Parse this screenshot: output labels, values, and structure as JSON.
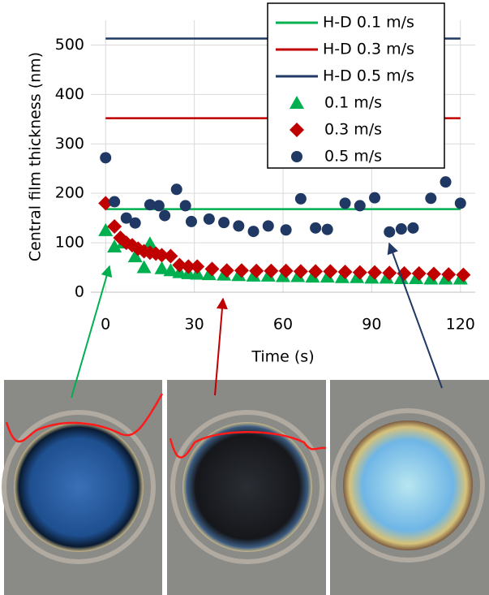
{
  "chart_data": {
    "type": "scatter",
    "y_label": "Central film thickness (nm)",
    "x_label": "Time (s)",
    "xlim": [
      -5,
      125
    ],
    "xticks": [
      0,
      30,
      60,
      90,
      120
    ],
    "ylim": [
      0,
      550
    ],
    "yticks": [
      0,
      100,
      200,
      300,
      400,
      500
    ],
    "grid": true,
    "legend": "upper right",
    "series": [
      {
        "name": "H-D 0.1 m/s",
        "color": "#00b050",
        "mode": "line",
        "x": [
          0,
          120
        ],
        "values": [
          168,
          168
        ]
      },
      {
        "name": "H-D 0.3 m/s",
        "color": "#c00000",
        "mode": "line",
        "x": [
          0,
          120
        ],
        "values": [
          352,
          352
        ]
      },
      {
        "name": "H-D 0.5 m/s",
        "color": "#1f3864",
        "mode": "line",
        "x": [
          0,
          120
        ],
        "values": [
          513,
          513
        ]
      },
      {
        "name": "0.1 m/s",
        "color": "#00b050",
        "mode": "marker",
        "marker": "triangle",
        "x": [
          0,
          3,
          6,
          10,
          13,
          15,
          19,
          22,
          25,
          28,
          31,
          35,
          40,
          45,
          50,
          55,
          60,
          65,
          70,
          75,
          80,
          85,
          90,
          95,
          100,
          105,
          110,
          115,
          120
        ],
        "values": [
          125,
          92,
          100,
          72,
          50,
          98,
          48,
          44,
          40,
          38,
          37,
          36,
          35,
          34,
          33,
          33,
          32,
          32,
          31,
          31,
          30,
          30,
          29,
          29,
          28,
          28,
          27,
          27,
          27
        ]
      },
      {
        "name": "0.3 m/s",
        "color": "#c00000",
        "mode": "marker",
        "marker": "diamond",
        "x": [
          0,
          3,
          5,
          7,
          9,
          11,
          13,
          15,
          17,
          19,
          22,
          25,
          28,
          31,
          36,
          41,
          46,
          51,
          56,
          61,
          66,
          71,
          76,
          81,
          86,
          91,
          96,
          101,
          106,
          111,
          116,
          121
        ],
        "values": [
          180,
          133,
          110,
          100,
          95,
          88,
          83,
          80,
          78,
          75,
          73,
          55,
          52,
          52,
          47,
          44,
          44,
          43,
          43,
          43,
          42,
          42,
          42,
          41,
          40,
          40,
          39,
          38,
          38,
          37,
          36,
          35
        ]
      },
      {
        "name": "0.5 m/s",
        "color": "#1f3864",
        "mode": "marker",
        "marker": "circle",
        "x": [
          0,
          3,
          7,
          10,
          15,
          18,
          20,
          24,
          27,
          29,
          35,
          40,
          45,
          50,
          55,
          61,
          66,
          71,
          75,
          81,
          86,
          91,
          96,
          100,
          104,
          110,
          115,
          120
        ],
        "values": [
          272,
          183,
          150,
          140,
          177,
          175,
          155,
          208,
          175,
          143,
          148,
          141,
          134,
          123,
          134,
          126,
          189,
          130,
          127,
          180,
          175,
          191,
          122,
          128,
          130,
          190,
          223,
          180
        ]
      }
    ]
  }
}
